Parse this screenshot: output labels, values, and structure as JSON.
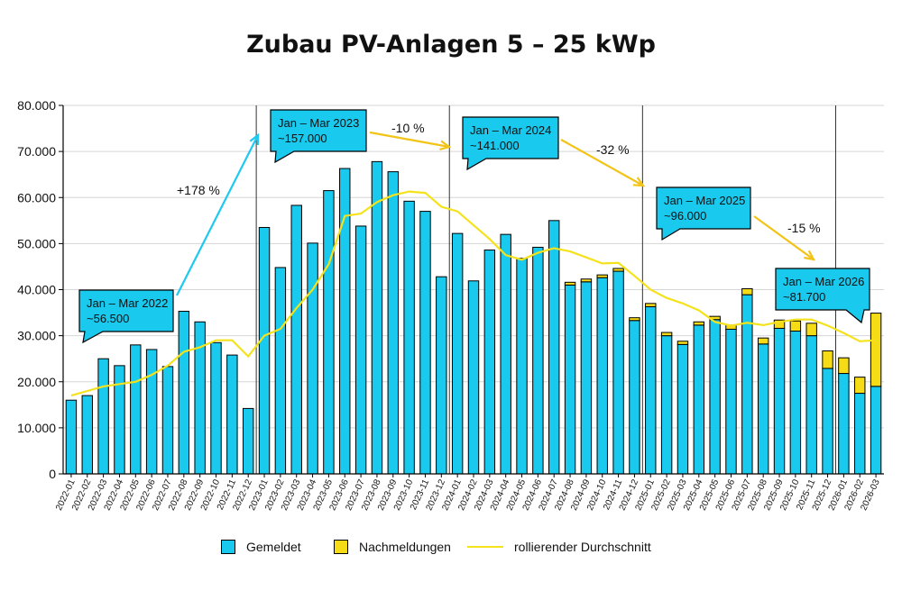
{
  "title": "Zubau PV-Anlagen 5 – 25 kWp",
  "colors": {
    "gemeldet": "#19C9EE",
    "nachmeldungen": "#F5DC17",
    "rolling": "#F4E21C",
    "arrow_up": "#1EC8F0",
    "arrow_down": "#F2C418",
    "callout": "#19C9EE",
    "grid": "#d6d6d6"
  },
  "legend": {
    "gemeldet": "Gemeldet",
    "nachmeldungen": "Nachmeldungen",
    "rolling": "rollierender Durchschnitt"
  },
  "chart_data": {
    "type": "bar",
    "stacked": true,
    "grid": true,
    "ylim": [
      0,
      80000
    ],
    "yticks": [
      "0",
      "10.000",
      "20.000",
      "30.000",
      "40.000",
      "50.000",
      "60.000",
      "70.000",
      "80.000"
    ],
    "year_separators_before": [
      "2023-01",
      "2024-01",
      "2025-01",
      "2026-01"
    ],
    "categories": [
      "2022-01",
      "2022-02",
      "2022-03",
      "2022-04",
      "2022-05",
      "2022-06",
      "2022-07",
      "2022-08",
      "2022-09",
      "2022-10",
      "2022-11",
      "2022-12",
      "2023-01",
      "2023-02",
      "2023-03",
      "2023-04",
      "2023-05",
      "2023-06",
      "2023-07",
      "2023-08",
      "2023-09",
      "2023-10",
      "2023-11",
      "2023-12",
      "2024-01",
      "2024-02",
      "2024-03",
      "2024-04",
      "2024-05",
      "2024-06",
      "2024-07",
      "2024-08",
      "2024-09",
      "2024-10",
      "2024-11",
      "2024-12",
      "2025-01",
      "2025-02",
      "2025-03",
      "2025-04",
      "2025-05",
      "2025-06",
      "2025-07",
      "2025-08",
      "2025-09",
      "2025-10",
      "2025-11",
      "2025-12",
      "2026-01",
      "2026-02",
      "2026-03"
    ],
    "series": [
      {
        "name": "Gemeldet",
        "values": [
          16000,
          17000,
          25000,
          23500,
          28000,
          27000,
          23300,
          35300,
          33000,
          28500,
          25800,
          14200,
          53500,
          44800,
          58300,
          50100,
          61500,
          66300,
          53800,
          67800,
          65600,
          59200,
          57000,
          42800,
          52200,
          41900,
          48600,
          52000,
          46800,
          49200,
          55000,
          41000,
          41700,
          42600,
          44000,
          33300,
          36300,
          30000,
          28100,
          32300,
          33500,
          31400,
          38900,
          28200,
          31600,
          31000,
          30000,
          22900,
          21800,
          17500,
          19000
        ]
      },
      {
        "name": "Nachmeldungen",
        "values": [
          0,
          0,
          0,
          0,
          0,
          0,
          0,
          0,
          0,
          0,
          0,
          0,
          0,
          0,
          0,
          0,
          0,
          0,
          0,
          0,
          0,
          0,
          0,
          0,
          0,
          0,
          0,
          0,
          0,
          0,
          0,
          600,
          600,
          600,
          600,
          600,
          700,
          700,
          700,
          700,
          700,
          900,
          1300,
          1300,
          1800,
          2200,
          2700,
          3800,
          3400,
          3500,
          15900
        ]
      },
      {
        "name": "rollierender Durchschnitt",
        "type": "line",
        "values": [
          17000,
          18000,
          19000,
          19500,
          20000,
          21500,
          23500,
          26500,
          27500,
          29000,
          29000,
          25500,
          30000,
          31500,
          36000,
          40000,
          45500,
          56000,
          56500,
          59000,
          60500,
          61300,
          61000,
          58000,
          57000,
          54000,
          51000,
          47500,
          46500,
          48000,
          49000,
          48300,
          47000,
          45700,
          45800,
          43000,
          40000,
          38200,
          37000,
          35500,
          33000,
          32200,
          32800,
          32300,
          33000,
          33500,
          33500,
          32200,
          30600,
          28800,
          29000
        ]
      }
    ],
    "annotations": [
      {
        "label": "Jan – Mar 2022",
        "value": "~56.500"
      },
      {
        "label": "Jan – Mar 2023",
        "value": "~157.000"
      },
      {
        "label": "Jan – Mar 2024",
        "value": "~141.000"
      },
      {
        "label": "Jan – Mar 2025",
        "value": "~96.000"
      },
      {
        "label": "Jan – Mar 2026",
        "value": "~81.700"
      }
    ],
    "changes": [
      "+178 %",
      "-10 %",
      "-32 %",
      "-15 %"
    ]
  }
}
